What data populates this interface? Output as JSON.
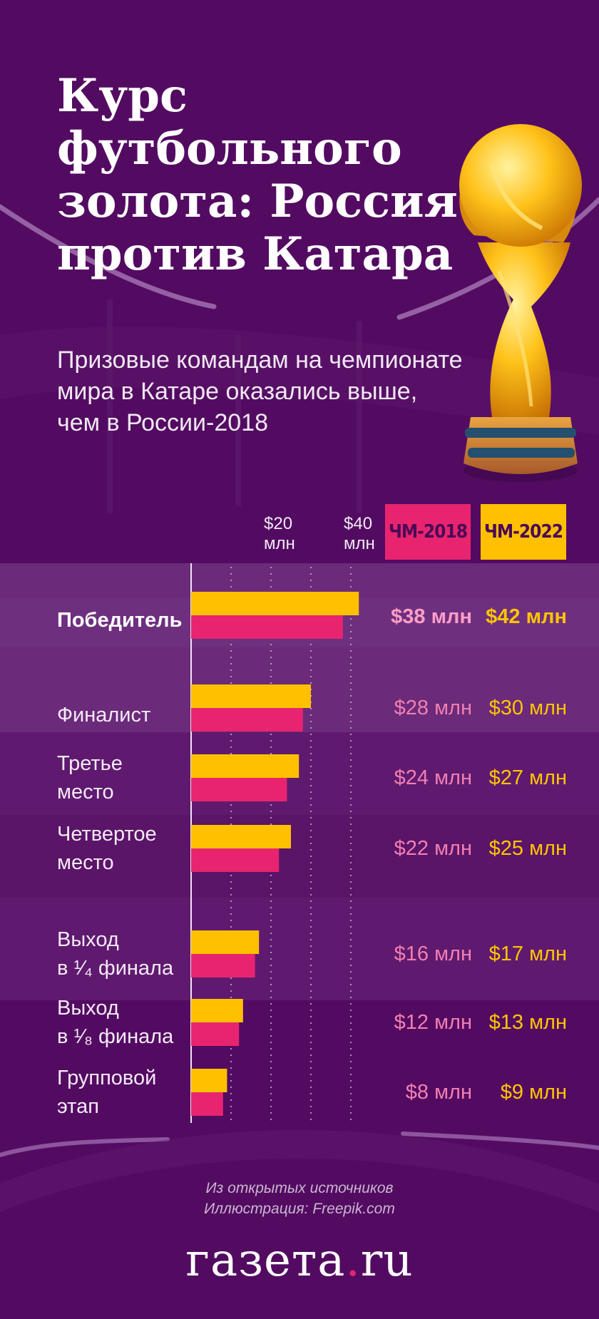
{
  "title_lines": [
    "Курс футбольного",
    "золота: Россия",
    "против Катара"
  ],
  "subtitle_lines": [
    "Призовые командам на чемпионате",
    "мира в Катаре оказались выше,",
    "чем в России-2018"
  ],
  "legend": {
    "s2018": "ЧМ-2018",
    "s2022": "ЧМ-2022"
  },
  "ticks": [
    {
      "value": 20,
      "line1": "$20",
      "line2": "млн"
    },
    {
      "value": 40,
      "line1": "$40",
      "line2": "млн"
    }
  ],
  "rows": [
    {
      "label_lines": [
        "Победитель"
      ],
      "v2018_text": "$38 млн",
      "v2022_text": "$42 млн",
      "bold": true
    },
    {
      "label_lines": [
        "Финалист"
      ],
      "v2018_text": "$28 млн",
      "v2022_text": "$30 млн"
    },
    {
      "label_lines": [
        "Третье",
        "место"
      ],
      "v2018_text": "$24 млн",
      "v2022_text": "$27 млн"
    },
    {
      "label_lines": [
        "Четвертое",
        "место"
      ],
      "v2018_text": "$22 млн",
      "v2022_text": "$25 млн"
    },
    {
      "label_lines": [
        "Выход",
        "в ¹⁄₄ финала"
      ],
      "v2018_text": "$16 млн",
      "v2022_text": "$17 млн"
    },
    {
      "label_lines": [
        "Выход",
        "в ¹⁄₈ финала"
      ],
      "v2018_text": "$12 млн",
      "v2022_text": "$13 млн"
    },
    {
      "label_lines": [
        "Групповой",
        "этап"
      ],
      "v2018_text": "$8 млн",
      "v2022_text": "$9 млн"
    }
  ],
  "source_lines": [
    "Из открытых источников",
    "Иллюстрация: Freepik.com"
  ],
  "logo": {
    "left": "газета",
    "dot": ".",
    "right": "ru"
  },
  "colors": {
    "background": "#530b62",
    "series_2018": "#e8246f",
    "series_2022": "#ffc000",
    "band_light": "#6b2a7a",
    "band_mid": "#5f1a70"
  },
  "decorations": [
    "world-cup-trophy-illustration",
    "stadium-light-arcs"
  ],
  "chart_data": {
    "type": "bar",
    "orientation": "horizontal",
    "categories": [
      "Победитель",
      "Финалист",
      "Третье место",
      "Четвертое место",
      "Выход в ¹⁄₄ финала",
      "Выход в ¹⁄₈ финала",
      "Групповой этап"
    ],
    "series": [
      {
        "name": "ЧМ-2022",
        "values": [
          42,
          30,
          27,
          25,
          17,
          13,
          9
        ]
      },
      {
        "name": "ЧМ-2018",
        "values": [
          38,
          28,
          24,
          22,
          16,
          12,
          8
        ]
      }
    ],
    "xlim": [
      0,
      50
    ],
    "x_ticks": [
      20,
      40
    ],
    "grid": true,
    "legend_position": "top-right"
  }
}
